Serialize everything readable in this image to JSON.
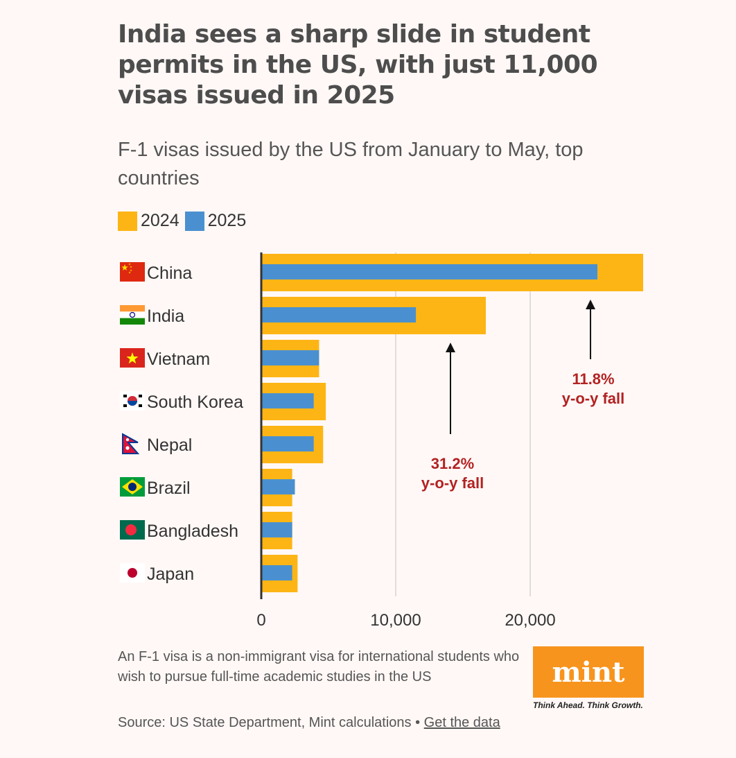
{
  "header": {
    "title": "India sees a sharp slide in student permits in the US, with just 11,000 visas issued in 2025",
    "subtitle": "F-1 visas issued by the US from January to May, top countries"
  },
  "legend": [
    {
      "label": "2024",
      "color": "#fdb515"
    },
    {
      "label": "2025",
      "color": "#4a90d0"
    }
  ],
  "chart_data": {
    "type": "bar",
    "orientation": "horizontal",
    "categories": [
      "China",
      "India",
      "Vietnam",
      "South Korea",
      "Nepal",
      "Brazil",
      "Bangladesh",
      "Japan"
    ],
    "series": [
      {
        "name": "2024",
        "color": "#fdb515",
        "values": [
          28400,
          16700,
          4300,
          4800,
          4600,
          2300,
          2300,
          2700
        ]
      },
      {
        "name": "2025",
        "color": "#4a90d0",
        "values": [
          25000,
          11500,
          4300,
          3900,
          3900,
          2500,
          2300,
          2300
        ]
      }
    ],
    "xlim": [
      0,
      28400
    ],
    "xticks": [
      0,
      10000,
      20000
    ],
    "xtick_labels": [
      "0",
      "10,000",
      "20,000"
    ],
    "grid": true,
    "annotations": [
      {
        "category": "China",
        "line1": "11.8%",
        "line2": "y-o-y fall",
        "color": "#b22222"
      },
      {
        "category": "India",
        "line1": "31.2%",
        "line2": "y-o-y fall",
        "color": "#b22222"
      }
    ]
  },
  "footer": {
    "note": "An F-1 visa is a non-immigrant visa for international students who wish to pursue full-time academic studies in the US",
    "source": "Source: US State Department, Mint calculations •",
    "data_link": "Get the data"
  },
  "branding": {
    "logo": "mint",
    "tagline": "Think Ahead. Think Growth.",
    "color": "#f7941d"
  },
  "icons": [
    "flag-china-icon",
    "flag-india-icon",
    "flag-vietnam-icon",
    "flag-south-korea-icon",
    "flag-nepal-icon",
    "flag-brazil-icon",
    "flag-bangladesh-icon",
    "flag-japan-icon"
  ]
}
